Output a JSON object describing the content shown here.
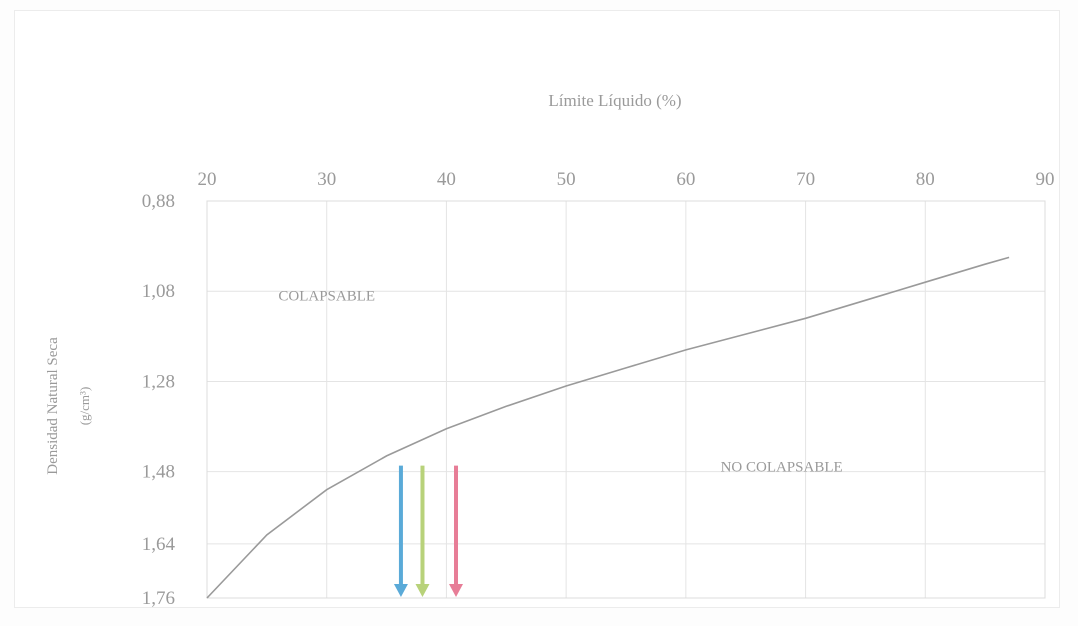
{
  "chart_data": {
    "type": "line",
    "title": "",
    "x_axis": {
      "label": "Límite Líquido (%)",
      "position": "top",
      "range": [
        20,
        90
      ],
      "ticks": [
        20,
        30,
        40,
        50,
        60,
        70,
        80,
        90
      ],
      "tick_labels": [
        "20",
        "30",
        "40",
        "50",
        "60",
        "70",
        "80",
        "90"
      ]
    },
    "y_axis": {
      "label_line1": "Densidad Natural Seca",
      "label_line2": "(g/cm³)",
      "range": [
        0.88,
        1.76
      ],
      "reversed": true,
      "ticks": [
        0.88,
        1.08,
        1.28,
        1.48,
        1.64,
        1.76
      ],
      "tick_labels": [
        "0,88",
        "1,08",
        "1,28",
        "1,48",
        "1,64",
        "1,76"
      ]
    },
    "grid": true,
    "series": [
      {
        "color": "#9a9a9a",
        "points": [
          [
            20,
            1.76
          ],
          [
            25,
            1.62
          ],
          [
            30,
            1.52
          ],
          [
            35,
            1.445
          ],
          [
            40,
            1.385
          ],
          [
            45,
            1.335
          ],
          [
            50,
            1.29
          ],
          [
            55,
            1.25
          ],
          [
            60,
            1.21
          ],
          [
            65,
            1.175
          ],
          [
            70,
            1.14
          ],
          [
            75,
            1.1
          ],
          [
            80,
            1.06
          ],
          [
            85,
            1.02
          ],
          [
            87,
            1.005
          ]
        ]
      }
    ],
    "annotations": [
      {
        "text": "COLAPSABLE",
        "x": 30,
        "y": 1.1
      },
      {
        "text": "NO COLAPSABLE",
        "x": 68,
        "y": 1.48
      }
    ],
    "arrows": [
      {
        "x": 36.2,
        "color": "#5aaad8"
      },
      {
        "x": 38.0,
        "color": "#b8d27a"
      },
      {
        "x": 40.8,
        "color": "#e77d97"
      }
    ]
  }
}
